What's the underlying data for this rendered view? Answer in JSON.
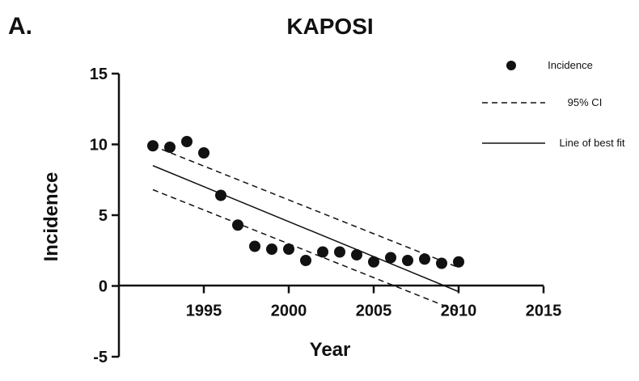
{
  "panel_label": "A.",
  "chart_data": {
    "type": "scatter",
    "title": "KAPOSI",
    "xlabel": "Year",
    "ylabel": "Incidence",
    "xlim": [
      1990,
      2015
    ],
    "ylim": [
      -5,
      15
    ],
    "xticks": [
      "1995",
      "2000",
      "2005",
      "2010",
      "2015"
    ],
    "yticks": [
      "-5",
      "0",
      "5",
      "10",
      "15"
    ],
    "series": [
      {
        "name": "Incidence",
        "style": "points",
        "x": [
          1992,
          1993,
          1994,
          1995,
          1996,
          1997,
          1998,
          1999,
          2000,
          2001,
          2002,
          2003,
          2004,
          2005,
          2006,
          2007,
          2008,
          2009,
          2010
        ],
        "y": [
          9.9,
          9.8,
          10.2,
          9.4,
          6.4,
          4.3,
          2.8,
          2.6,
          2.6,
          1.8,
          2.4,
          2.4,
          2.2,
          1.7,
          2.0,
          1.8,
          1.9,
          1.6,
          1.7
        ]
      },
      {
        "name": "95% CI",
        "style": "dashed",
        "segments": [
          {
            "x": [
              1992,
              2010
            ],
            "y": [
              9.9,
              1.3
            ]
          },
          {
            "x": [
              1992,
              2010
            ],
            "y": [
              6.8,
              -1.8
            ]
          }
        ]
      },
      {
        "name": "Line of best fit",
        "style": "solid",
        "x": [
          1992,
          2010
        ],
        "y": [
          8.5,
          -0.4
        ]
      }
    ],
    "legend_position": "top-right",
    "grid": false,
    "colors": {
      "ink": "#111111"
    }
  }
}
